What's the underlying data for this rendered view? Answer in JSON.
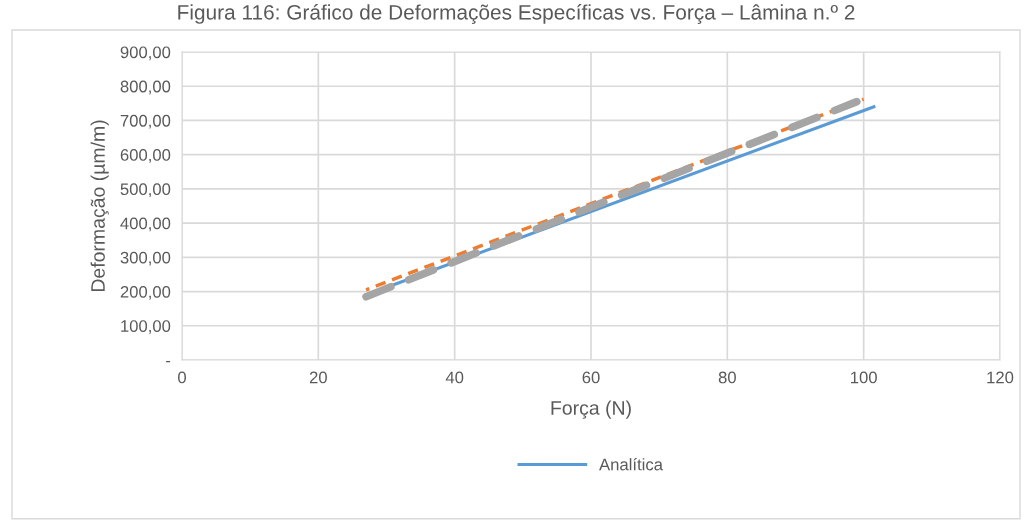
{
  "chart_data": {
    "type": "line",
    "title": "Figura 116: Gráfico de Deformações Específicas vs. Força – Lâmina n.º 2",
    "xlabel": "Força (N)",
    "ylabel": "Deformação (µm/m)",
    "series": [
      {
        "name": "Analítica",
        "color": "#5b9bd5",
        "x": [
          27,
          101.5
        ],
        "values": [
          190,
          740
        ],
        "line_style": "solid"
      },
      {
        "color": "#ed7d31",
        "x": [
          27,
          100
        ],
        "values": [
          205,
          762
        ],
        "line_style": "dashed"
      },
      {
        "color": "#a5a5a5",
        "x": [
          27,
          99
        ],
        "values": [
          185,
          755
        ],
        "line_style": "longdash"
      }
    ],
    "xlim": [
      0,
      120
    ],
    "xticks": [
      0,
      20,
      40,
      60,
      80,
      100,
      120
    ],
    "ylim": [
      0,
      900
    ],
    "yticks": [
      {
        "value": 0,
        "label": "-"
      },
      {
        "value": 100,
        "label": "100,00"
      },
      {
        "value": 200,
        "label": "200,00"
      },
      {
        "value": 300,
        "label": "300,00"
      },
      {
        "value": 400,
        "label": "400,00"
      },
      {
        "value": 500,
        "label": "500,00"
      },
      {
        "value": 600,
        "label": "600,00"
      },
      {
        "value": 700,
        "label": "700,00"
      },
      {
        "value": 800,
        "label": "800,00"
      },
      {
        "value": 900,
        "label": "900,00"
      }
    ],
    "grid": true,
    "legend": "bottom",
    "marker": "none"
  }
}
